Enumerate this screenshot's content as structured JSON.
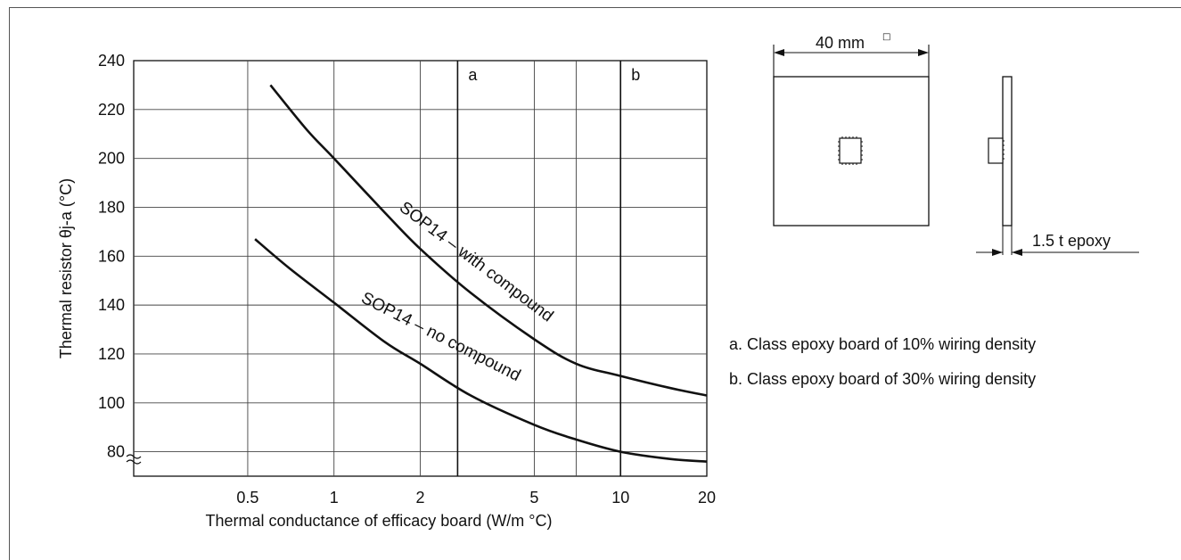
{
  "chart_data": {
    "type": "line",
    "title": "",
    "xlabel": "Thermal conductance of efficacy board  (W/m °C)",
    "ylabel": "Thermal resistor  θj-a  (°C)",
    "x_scale": "log",
    "xlim": [
      0.2,
      20
    ],
    "ylim": [
      70,
      240
    ],
    "x_ticks": [
      0.5,
      1,
      2,
      5,
      10,
      20
    ],
    "x_tick_labels": [
      "0.5",
      "1",
      "2",
      "5",
      "10",
      "20"
    ],
    "y_ticks": [
      80,
      100,
      120,
      140,
      160,
      180,
      200,
      220,
      240
    ],
    "y_tick_labels": [
      "80",
      "100",
      "120",
      "140",
      "160",
      "180",
      "200",
      "220",
      "240"
    ],
    "grid": true,
    "series": [
      {
        "name": "SOP14 – with compound",
        "x": [
          0.6,
          0.8,
          1,
          1.5,
          2,
          3,
          5,
          7,
          10,
          15,
          20
        ],
        "y": [
          230,
          212,
          200,
          178,
          163,
          145,
          126,
          116,
          111,
          106,
          103
        ]
      },
      {
        "name": "SOP14 – no compound",
        "x": [
          0.53,
          0.7,
          1,
          1.5,
          2,
          3,
          5,
          7,
          10,
          15,
          20
        ],
        "y": [
          167,
          155,
          141,
          125,
          116,
          103,
          91,
          85,
          80,
          77,
          76
        ]
      }
    ],
    "reference_lines": [
      {
        "label": "a",
        "x": 2.7
      },
      {
        "label": "b",
        "x": 10
      }
    ]
  },
  "diagram": {
    "dimension_label": "40 mm",
    "dimension_symbol": "□",
    "thickness_label": "1.5 t epoxy"
  },
  "notes": [
    "a. Class epoxy board of 10% wiring density",
    "b. Class epoxy board of 30% wiring density"
  ],
  "colors": {
    "line": "#111111",
    "grid": "#444444"
  }
}
